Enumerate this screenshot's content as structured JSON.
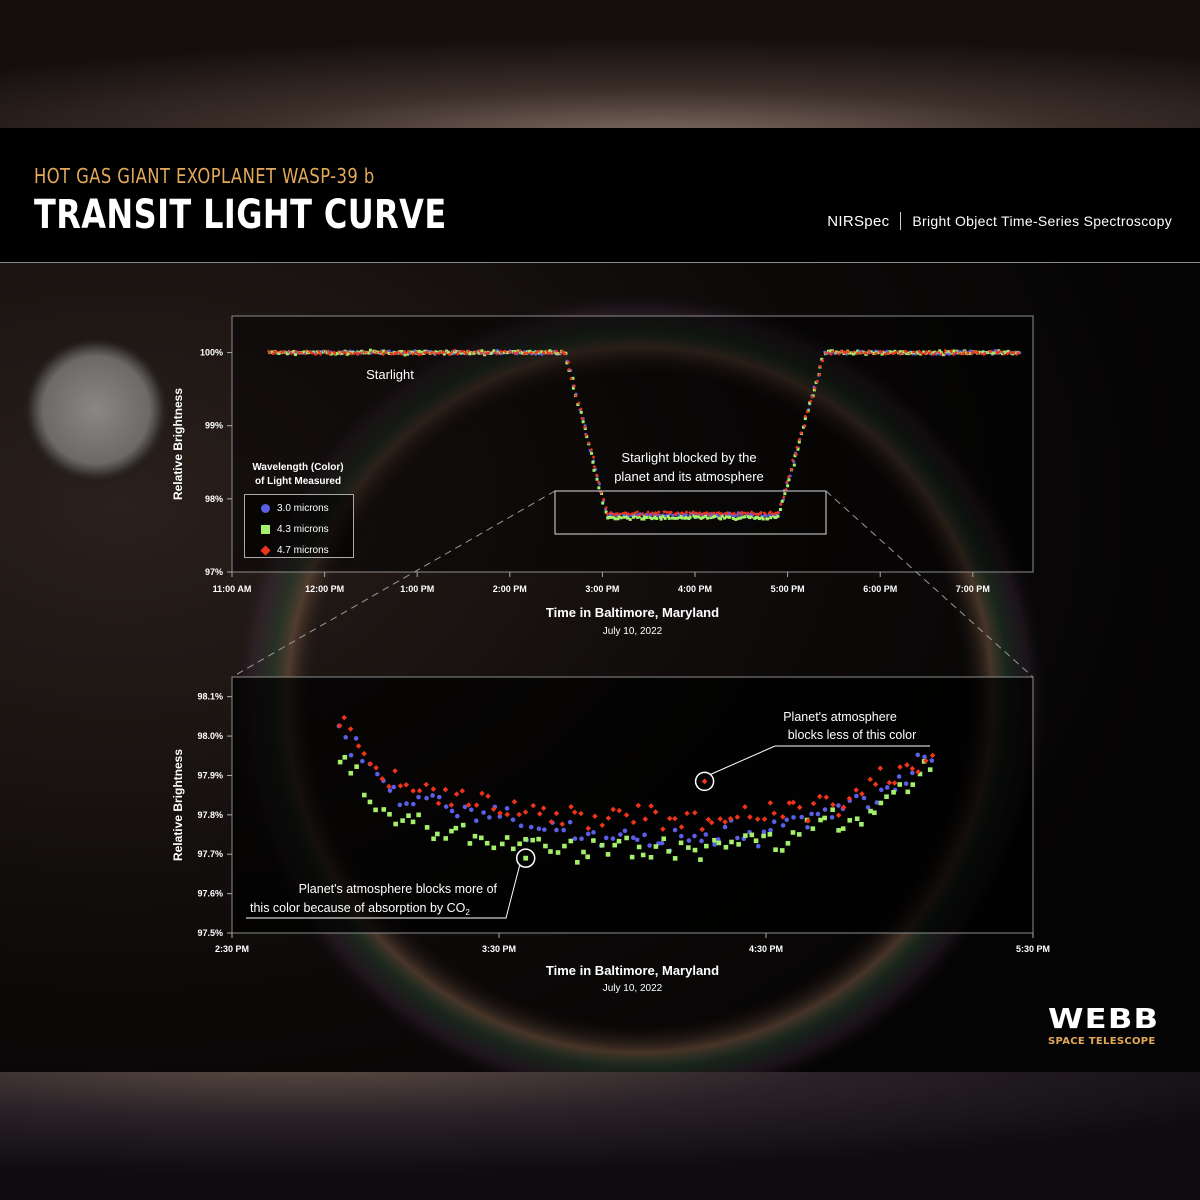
{
  "header": {
    "subtitle": "HOT GAS GIANT EXOPLANET WASP-39 b",
    "title": "TRANSIT LIGHT CURVE",
    "instrument": "NIRSpec",
    "mode": "Bright Object Time-Series Spectroscopy"
  },
  "branding": {
    "name": "WEBB",
    "tagline": "SPACE TELESCOPE"
  },
  "legend": {
    "title_line1": "Wavelength (Color)",
    "title_line2": "of Light Measured",
    "items": [
      {
        "label": "3.0 microns",
        "color": "#5a5fe6",
        "marker": "circle"
      },
      {
        "label": "4.3 microns",
        "color": "#a4f06a",
        "marker": "square"
      },
      {
        "label": "4.7 microns",
        "color": "#f0341c",
        "marker": "diamond"
      }
    ]
  },
  "chart_data": [
    {
      "type": "scatter",
      "ylabel": "Relative Brightness",
      "xlabel": "Time in Baltimore, Maryland",
      "xlabel_sub": "July 10, 2022",
      "x_ticks": [
        "11:00 AM",
        "12:00 PM",
        "1:00 PM",
        "2:00 PM",
        "3:00 PM",
        "4:00 PM",
        "5:00 PM",
        "6:00 PM",
        "7:00 PM"
      ],
      "x_tick_hours": [
        11,
        12,
        13,
        14,
        15,
        16,
        17,
        18,
        19
      ],
      "xlim_hours": [
        11.0,
        19.65
      ],
      "y_ticks": [
        "97%",
        "98%",
        "99%",
        "100%"
      ],
      "y_tick_values": [
        97,
        98,
        99,
        100
      ],
      "ylim": [
        97.0,
        100.5
      ],
      "transit_model": {
        "ingress_start": 14.6,
        "ingress_end": 15.05,
        "egress_start": 16.9,
        "egress_end": 17.4,
        "baseline": 100.0,
        "depth_floor": 97.8
      },
      "data_range_hours": [
        11.4,
        19.5
      ],
      "series": [
        {
          "name": "3.0 microns",
          "color": "#5a5fe6",
          "marker": "circle",
          "in_transit_level": 97.78
        },
        {
          "name": "4.3 microns",
          "color": "#a4f06a",
          "marker": "square",
          "in_transit_level": 97.74
        },
        {
          "name": "4.7 microns",
          "color": "#f0341c",
          "marker": "diamond",
          "in_transit_level": 97.8
        }
      ],
      "annotations": [
        {
          "text": "Starlight"
        },
        {
          "text_line1": "Starlight blocked by the",
          "text_line2": "planet and its atmosphere"
        }
      ],
      "zoom_box": {
        "x_hours": [
          14.5,
          17.5
        ],
        "y": [
          97.5,
          98.1
        ]
      }
    },
    {
      "type": "scatter",
      "ylabel": "Relative Brightness",
      "xlabel": "Time in Baltimore, Maryland",
      "xlabel_sub": "July 10, 2022",
      "x_ticks": [
        "2:30 PM",
        "3:30 PM",
        "4:30 PM",
        "5:30 PM"
      ],
      "x_tick_hours": [
        14.5,
        15.5,
        16.5,
        17.5
      ],
      "xlim_hours": [
        14.5,
        17.5
      ],
      "y_ticks": [
        "97.5%",
        "97.6%",
        "97.7%",
        "97.8%",
        "97.9%",
        "98.0%",
        "98.1%"
      ],
      "y_tick_values": [
        97.5,
        97.6,
        97.7,
        97.8,
        97.9,
        98.0,
        98.1
      ],
      "ylim": [
        97.5,
        98.15
      ],
      "data_range_hours": [
        14.9,
        17.12
      ],
      "series": [
        {
          "name": "3.0 microns",
          "color": "#5a5fe6",
          "marker": "circle",
          "curve": [
            [
              14.9,
              98.03
            ],
            [
              15.1,
              97.85
            ],
            [
              15.4,
              97.8
            ],
            [
              15.8,
              97.75
            ],
            [
              16.2,
              97.74
            ],
            [
              16.6,
              97.78
            ],
            [
              16.9,
              97.84
            ],
            [
              17.12,
              97.94
            ]
          ]
        },
        {
          "name": "4.3 microns",
          "color": "#a4f06a",
          "marker": "square",
          "curve": [
            [
              14.9,
              97.95
            ],
            [
              15.1,
              97.79
            ],
            [
              15.4,
              97.74
            ],
            [
              15.8,
              97.71
            ],
            [
              16.2,
              97.71
            ],
            [
              16.6,
              97.74
            ],
            [
              16.9,
              97.8
            ],
            [
              17.12,
              97.92
            ]
          ]
        },
        {
          "name": "4.7 microns",
          "color": "#f0341c",
          "marker": "diamond",
          "curve": [
            [
              14.9,
              98.03
            ],
            [
              15.1,
              97.89
            ],
            [
              15.4,
              97.83
            ],
            [
              15.8,
              97.8
            ],
            [
              16.2,
              97.78
            ],
            [
              16.6,
              97.82
            ],
            [
              16.9,
              97.87
            ],
            [
              17.12,
              97.95
            ]
          ]
        }
      ],
      "annotations": [
        {
          "text_line1": "Planet's atmosphere",
          "text_line2": "blocks less of this color",
          "target_hours": 16.27,
          "target_value": 97.885,
          "series": "4.7 microns"
        },
        {
          "text_line1": "Planet's atmosphere blocks more of",
          "text_line2_prefix": "this color because of absorption by CO",
          "text_line2_sub": "2",
          "target_hours": 15.6,
          "target_value": 97.69,
          "series": "4.3 microns"
        }
      ]
    }
  ]
}
